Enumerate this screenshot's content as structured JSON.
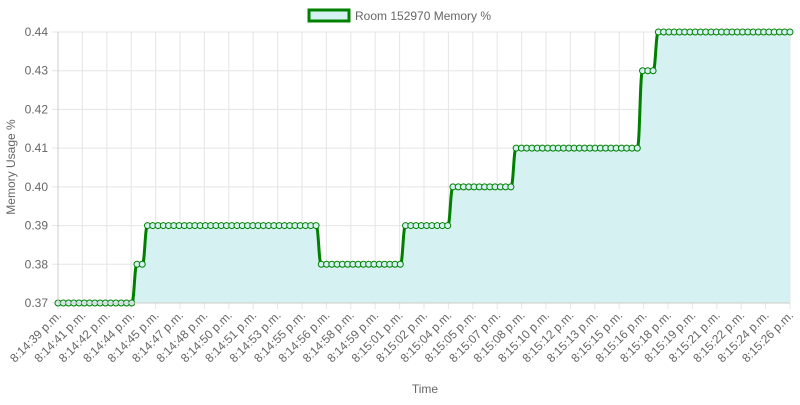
{
  "chart_data": {
    "type": "area",
    "title": "",
    "legend": {
      "position": "top",
      "label": "Room 152970 Memory %"
    },
    "xlabel": "Time",
    "ylabel": "Memory Usage %",
    "ylim": [
      0.37,
      0.44
    ],
    "yticks": [
      "0.44",
      "0.43",
      "0.42",
      "0.41",
      "0.40",
      "0.39",
      "0.38",
      "0.37"
    ],
    "x_tick_labels": [
      "8:14:39 p.m.",
      "8:14:41 p.m.",
      "8:14:42 p.m.",
      "8:14:44 p.m.",
      "8:14:45 p.m.",
      "8:14:47 p.m.",
      "8:14:48 p.m.",
      "8:14:50 p.m.",
      "8:14:51 p.m.",
      "8:14:53 p.m.",
      "8:14:55 p.m.",
      "8:14:56 p.m.",
      "8:14:58 p.m.",
      "8:14:59 p.m.",
      "8:15:01 p.m.",
      "8:15:02 p.m.",
      "8:15:04 p.m.",
      "8:15:05 p.m.",
      "8:15:07 p.m.",
      "8:15:08 p.m.",
      "8:15:10 p.m.",
      "8:15:12 p.m.",
      "8:15:13 p.m.",
      "8:15:15 p.m.",
      "8:15:16 p.m.",
      "8:15:18 p.m.",
      "8:15:19 p.m.",
      "8:15:21 p.m.",
      "8:15:22 p.m.",
      "8:15:24 p.m.",
      "8:15:26 p.m."
    ],
    "grid": true,
    "series": [
      {
        "name": "Room 152970 Memory %",
        "segments": [
          {
            "value": 0.37,
            "count": 15
          },
          {
            "value": 0.38,
            "count": 2
          },
          {
            "value": 0.39,
            "count": 33
          },
          {
            "value": 0.38,
            "count": 16
          },
          {
            "value": 0.39,
            "count": 9
          },
          {
            "value": 0.4,
            "count": 12
          },
          {
            "value": 0.41,
            "count": 24
          },
          {
            "value": 0.43,
            "count": 3
          },
          {
            "value": 0.44,
            "count": 26
          }
        ]
      }
    ],
    "colors": {
      "line": "#008000",
      "fill": "#d5f1f1",
      "grid": "#e5e5e5",
      "text": "#666666"
    }
  }
}
